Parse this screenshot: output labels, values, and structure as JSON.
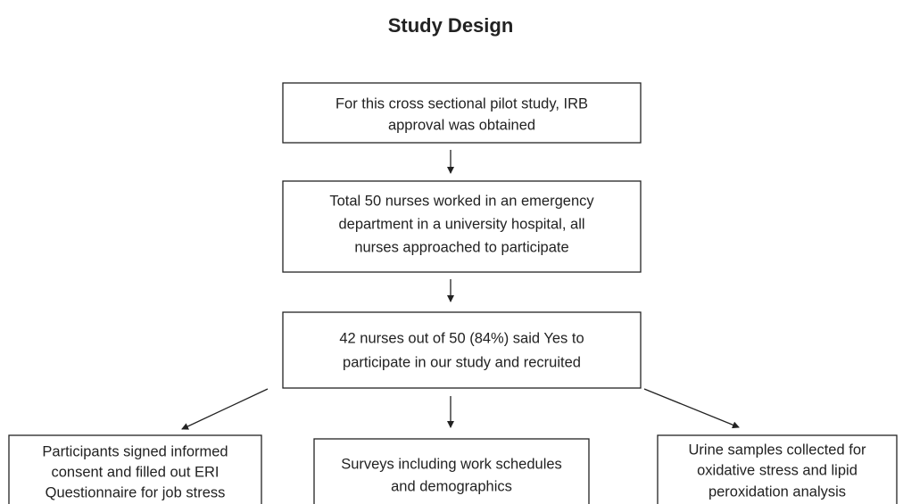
{
  "title": "Study Design",
  "nodes": [
    {
      "lines": [
        "For this cross sectional pilot study, IRB",
        "approval was obtained"
      ]
    },
    {
      "lines": [
        "Total 50 nurses worked in an emergency",
        "department in a university hospital, all",
        "nurses approached to participate"
      ]
    },
    {
      "lines": [
        "42 nurses out of 50 (84%) said Yes to",
        "participate in our study and recruited"
      ]
    },
    {
      "lines": [
        "Participants signed informed",
        "consent and filled out ERI",
        "Questionnaire for job stress"
      ]
    },
    {
      "lines": [
        "Surveys including work schedules",
        "and demographics"
      ]
    },
    {
      "lines": [
        "Urine samples collected for",
        "oxidative stress and lipid",
        "peroxidation analysis"
      ]
    }
  ]
}
